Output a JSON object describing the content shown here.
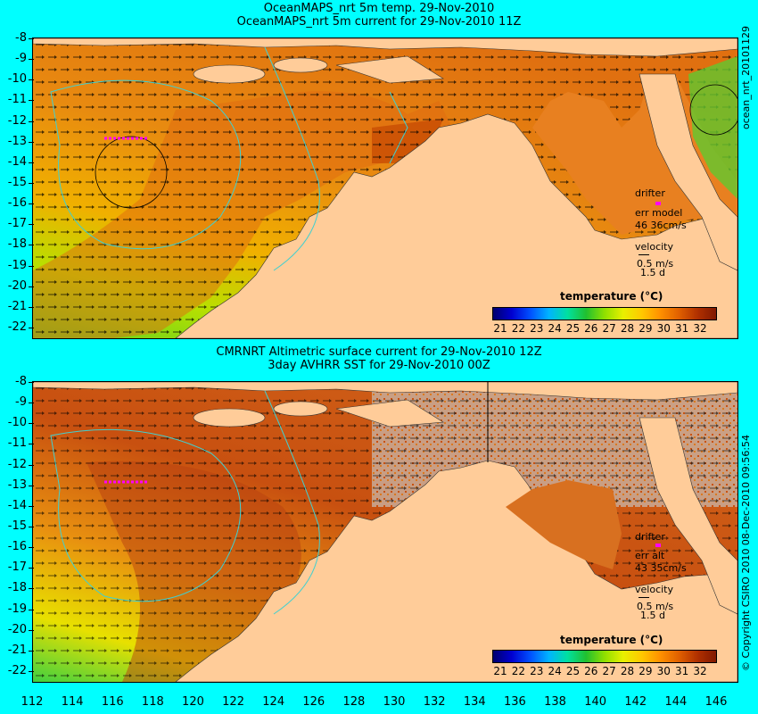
{
  "top_panel": {
    "title_line1": "OceanMAPS_nrt 5m temp. 29-Nov-2010",
    "title_line2": "OceanMAPS_nrt 5m current for 29-Nov-2010 11Z",
    "side_label": "ocean_nrt_20101129",
    "legend": {
      "drifter": "drifter",
      "err": "err model",
      "err_value": "46 36cm/s",
      "velocity": "velocity",
      "speed": "0.5 m/s",
      "days": "1.5 d"
    }
  },
  "bottom_panel": {
    "title_line1": "CMRNRT Altimetric surface current for 29-Nov-2010 12Z",
    "title_line2": "3day AVHRR SST for 29-Nov-2010 00Z",
    "side_label": "© Copyright CSIRO 2010   08-Dec-2010 09:56:54",
    "legend": {
      "drifter": "drifter",
      "err": "err alt",
      "err_value": "43 35cm/s",
      "velocity": "velocity",
      "speed": "0.5 m/s",
      "days": "1.5 d"
    }
  },
  "colorbar": {
    "title": "temperature (°C)",
    "ticks": [
      "21",
      "22",
      "23",
      "24",
      "25",
      "26",
      "27",
      "28",
      "29",
      "30",
      "31",
      "32"
    ]
  },
  "axes": {
    "lat_ticks": [
      "-8",
      "-9",
      "-10",
      "-11",
      "-12",
      "-13",
      "-14",
      "-15",
      "-16",
      "-17",
      "-18",
      "-19",
      "-20",
      "-21",
      "-22"
    ],
    "lon_ticks": [
      "112",
      "114",
      "116",
      "118",
      "120",
      "122",
      "124",
      "126",
      "128",
      "130",
      "132",
      "134",
      "136",
      "138",
      "140",
      "142",
      "144",
      "146"
    ]
  },
  "colors": {
    "background": "#00ffff",
    "land": "#ffcc99",
    "ocean_warm": "#e07010",
    "ocean_cool": "#a0e000",
    "no_data": "#c8b0a0",
    "drifter": "#ff00ff",
    "contour": "#40d0d0"
  }
}
